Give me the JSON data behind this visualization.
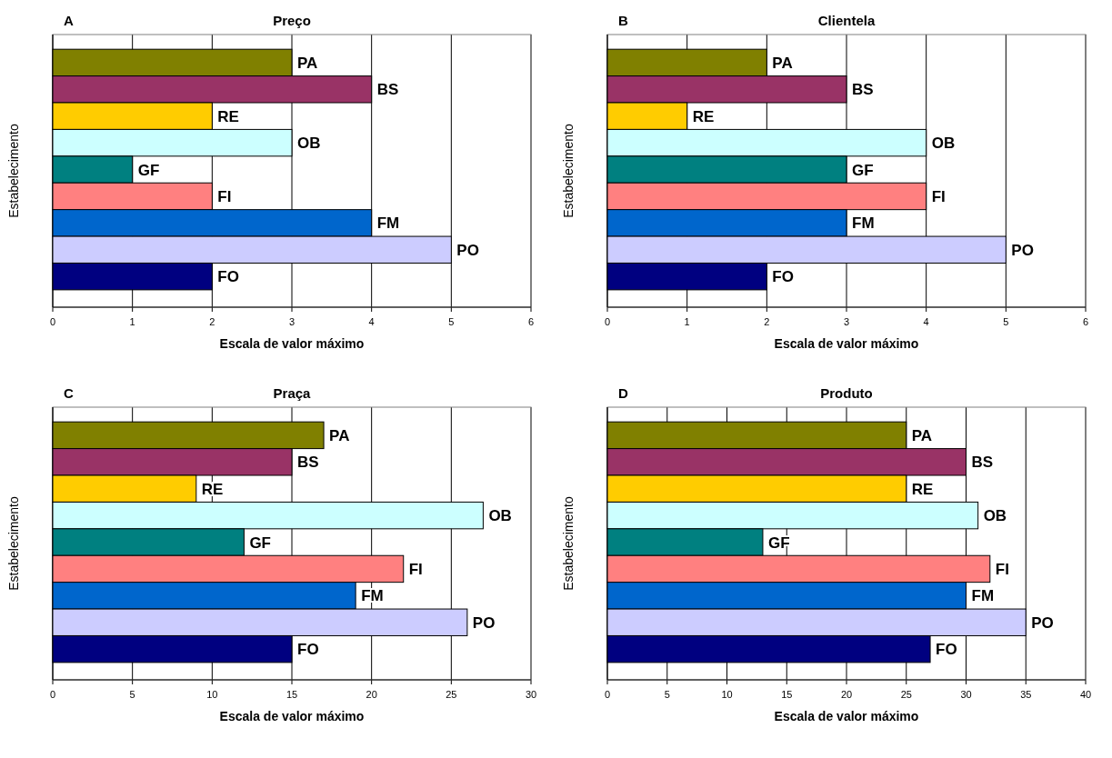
{
  "chart_data": [
    {
      "type": "bar",
      "orientation": "horizontal",
      "title": "Preço",
      "annotations": [
        "A"
      ],
      "xlabel": "Escala de valor máximo",
      "ylabel": "Estabelecimento",
      "categories": [
        "PA",
        "BS",
        "RE",
        "OB",
        "GF",
        "FI",
        "FM",
        "PO",
        "FO"
      ],
      "values": [
        3,
        4,
        2,
        3,
        1,
        2,
        4,
        5,
        2
      ],
      "colors": [
        "#808000",
        "#993366",
        "#ffcc00",
        "#ccffff",
        "#008080",
        "#ff8080",
        "#0066cc",
        "#ccccff",
        "#000080"
      ],
      "xlim": [
        0,
        6
      ],
      "xticks": [
        0,
        1,
        2,
        3,
        4,
        5,
        6
      ],
      "grid": "x"
    },
    {
      "type": "bar",
      "orientation": "horizontal",
      "title": "Clientela",
      "annotations": [
        "B"
      ],
      "xlabel": "Escala de valor máximo",
      "ylabel": "Estabelecimento",
      "categories": [
        "PA",
        "BS",
        "RE",
        "OB",
        "GF",
        "FI",
        "FM",
        "PO",
        "FO"
      ],
      "values": [
        2,
        3,
        1,
        4,
        3,
        4,
        3,
        5,
        2
      ],
      "colors": [
        "#808000",
        "#993366",
        "#ffcc00",
        "#ccffff",
        "#008080",
        "#ff8080",
        "#0066cc",
        "#ccccff",
        "#000080"
      ],
      "xlim": [
        0,
        6
      ],
      "xticks": [
        0,
        1,
        2,
        3,
        4,
        5,
        6
      ],
      "grid": "x"
    },
    {
      "type": "bar",
      "orientation": "horizontal",
      "title": "Praça",
      "annotations": [
        "C"
      ],
      "xlabel": "Escala de valor máximo",
      "ylabel": "Estabelecimento",
      "categories": [
        "PA",
        "BS",
        "RE",
        "OB",
        "GF",
        "FI",
        "FM",
        "PO",
        "FO"
      ],
      "values": [
        17,
        15,
        9,
        27,
        12,
        22,
        19,
        26,
        15
      ],
      "colors": [
        "#808000",
        "#993366",
        "#ffcc00",
        "#ccffff",
        "#008080",
        "#ff8080",
        "#0066cc",
        "#ccccff",
        "#000080"
      ],
      "xlim": [
        0,
        30
      ],
      "xticks": [
        0,
        5,
        10,
        15,
        20,
        25,
        30
      ],
      "grid": "x"
    },
    {
      "type": "bar",
      "orientation": "horizontal",
      "title": "Produto",
      "annotations": [
        "D"
      ],
      "xlabel": "Escala de valor máximo",
      "ylabel": "Estabelecimento",
      "categories": [
        "PA",
        "BS",
        "RE",
        "OB",
        "GF",
        "FI",
        "FM",
        "PO",
        "FO"
      ],
      "values": [
        25,
        30,
        25,
        31,
        13,
        32,
        30,
        35,
        27
      ],
      "colors": [
        "#808000",
        "#993366",
        "#ffcc00",
        "#ccffff",
        "#008080",
        "#ff8080",
        "#0066cc",
        "#ccccff",
        "#000080"
      ],
      "xlim": [
        0,
        40
      ],
      "xticks": [
        0,
        5,
        10,
        15,
        20,
        25,
        30,
        35,
        40
      ],
      "grid": "x"
    }
  ]
}
